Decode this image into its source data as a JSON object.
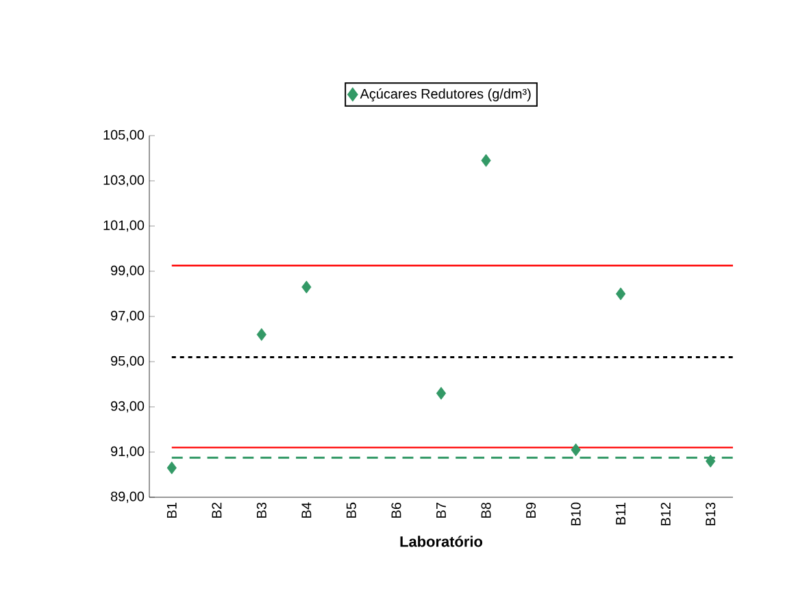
{
  "chart_data": {
    "type": "scatter",
    "categories": [
      "B1",
      "B2",
      "B3",
      "B4",
      "B5",
      "B6",
      "B7",
      "B8",
      "B9",
      "B10",
      "B11",
      "B12",
      "B13"
    ],
    "series": [
      {
        "name": "Açúcares Redutores (g/dm³)",
        "color": "#339966",
        "values": [
          90.3,
          null,
          96.2,
          98.3,
          null,
          null,
          93.6,
          103.9,
          null,
          91.1,
          98.0,
          null,
          90.6
        ]
      }
    ],
    "marker": "diamond",
    "xlabel": "Laboratório",
    "ylim": [
      89,
      105
    ],
    "yticks": [
      {
        "value": 89,
        "label": "89,00"
      },
      {
        "value": 91,
        "label": "91,00"
      },
      {
        "value": 93,
        "label": "93,00"
      },
      {
        "value": 95,
        "label": "95,00"
      },
      {
        "value": 97,
        "label": "97,00"
      },
      {
        "value": 99,
        "label": "99,00"
      },
      {
        "value": 101,
        "label": "101,00"
      },
      {
        "value": 103,
        "label": "103,00"
      },
      {
        "value": 105,
        "label": "105,00"
      }
    ],
    "ref_lines": [
      {
        "axis": "y",
        "value": 99.25,
        "color": "#ff0000",
        "line_style": "solid"
      },
      {
        "axis": "y",
        "value": 95.2,
        "color": "#000000",
        "line_style": "dotted"
      },
      {
        "axis": "y",
        "value": 91.2,
        "color": "#ff0000",
        "line_style": "solid"
      },
      {
        "axis": "y",
        "value": 90.75,
        "color": "#339966",
        "line_style": "dashed"
      }
    ],
    "grid": false,
    "legend": "top"
  }
}
